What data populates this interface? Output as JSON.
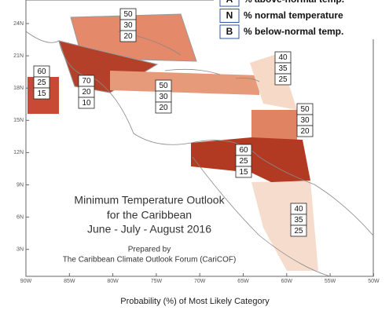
{
  "legend": {
    "items": [
      {
        "code": "A",
        "text": "% above-normal temp."
      },
      {
        "code": "N",
        "text": "% normal temperature"
      },
      {
        "code": "B",
        "text": "% below-normal temp."
      }
    ]
  },
  "map": {
    "lat_labels": [
      "24N",
      "21N",
      "18N",
      "15N",
      "12N",
      "9N",
      "6N",
      "3N"
    ],
    "lon_labels": [
      "90W",
      "85W",
      "80W",
      "75W",
      "70W",
      "65W",
      "60W",
      "55W",
      "50W"
    ],
    "regions": [
      {
        "above": 50,
        "normal": 30,
        "below": 20
      },
      {
        "above": 60,
        "normal": 25,
        "below": 15
      },
      {
        "above": 70,
        "normal": 20,
        "below": 10
      },
      {
        "above": 50,
        "normal": 30,
        "below": 20
      },
      {
        "above": 40,
        "normal": 35,
        "below": 25
      },
      {
        "above": 50,
        "normal": 30,
        "below": 20
      },
      {
        "above": 60,
        "normal": 25,
        "below": 15
      },
      {
        "above": 40,
        "normal": 35,
        "below": 25
      }
    ]
  },
  "title": {
    "lines": [
      "Minimum Temperature Outlook",
      "for the Caribbean",
      "June - July - August 2016"
    ]
  },
  "credit": {
    "prepared": "Prepared by",
    "org": "The Caribbean Climate Outlook Forum (CariCOF)"
  },
  "footer": "Probability (%) of Most Likely Category"
}
